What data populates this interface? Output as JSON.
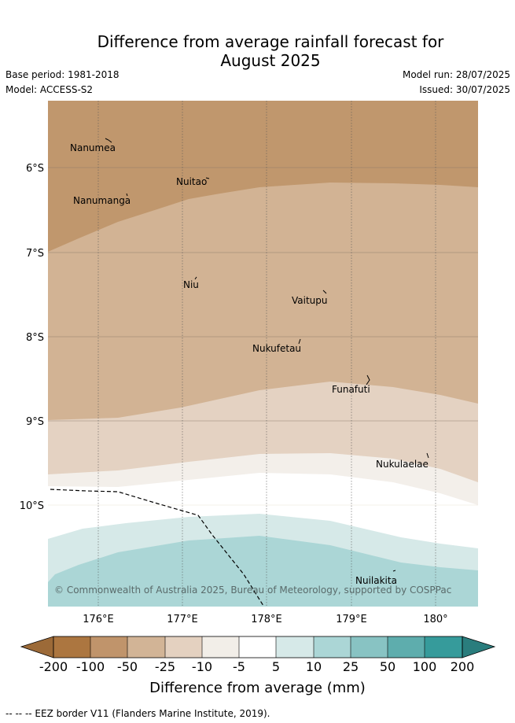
{
  "title": {
    "line1": "Difference from average rainfall forecast for",
    "line2": "August 2025"
  },
  "meta": {
    "base_period": "Base period: 1981-2018",
    "model": "Model: ACCESS-S2",
    "model_run": "Model run: 28/07/2025",
    "issued": "Issued: 30/07/2025"
  },
  "map": {
    "lat_labels": [
      "6°S",
      "7°S",
      "8°S",
      "9°S",
      "10°S"
    ],
    "lon_labels": [
      "176°E",
      "177°E",
      "178°E",
      "179°E",
      "180°"
    ],
    "islands": [
      {
        "name": "Nanumea"
      },
      {
        "name": "Nuitao"
      },
      {
        "name": "Nanumanga"
      },
      {
        "name": "Niu"
      },
      {
        "name": "Vaitupu"
      },
      {
        "name": "Nukufetau"
      },
      {
        "name": "Funafuti"
      },
      {
        "name": "Nukulaelae"
      },
      {
        "name": "Nuilakita"
      }
    ],
    "copyright": "© Commonwealth of Australia 2025, Bureau of Meteorology, supported by COSPPac",
    "colors": {
      "dark_brown": "#c0976d",
      "mid_brown": "#d2b394",
      "light_brown": "#e4d2c2",
      "off_white": "#f3efea",
      "white": "#ffffff",
      "light_teal": "#d6e9e8",
      "mid_teal": "#abd6d6",
      "eez_line": "#000000"
    }
  },
  "colorbar": {
    "labels": [
      "-200",
      "-100",
      "-50",
      "-25",
      "-10",
      "-5",
      "5",
      "10",
      "25",
      "50",
      "100",
      "200"
    ],
    "colors": [
      "#ac7640",
      "#c0946b",
      "#d2b496",
      "#e4d1c0",
      "#f2eee8",
      "#ffffff",
      "#d6e9e8",
      "#abd6d6",
      "#88c3c3",
      "#5eadad",
      "#369b9b"
    ],
    "under_color": "#9c6a38",
    "over_color": "#2a7d7d",
    "title": "Difference from average (mm)"
  },
  "legend_note": "--  --  -- EEZ border V11 (Flanders Marine Institute, 2019)."
}
